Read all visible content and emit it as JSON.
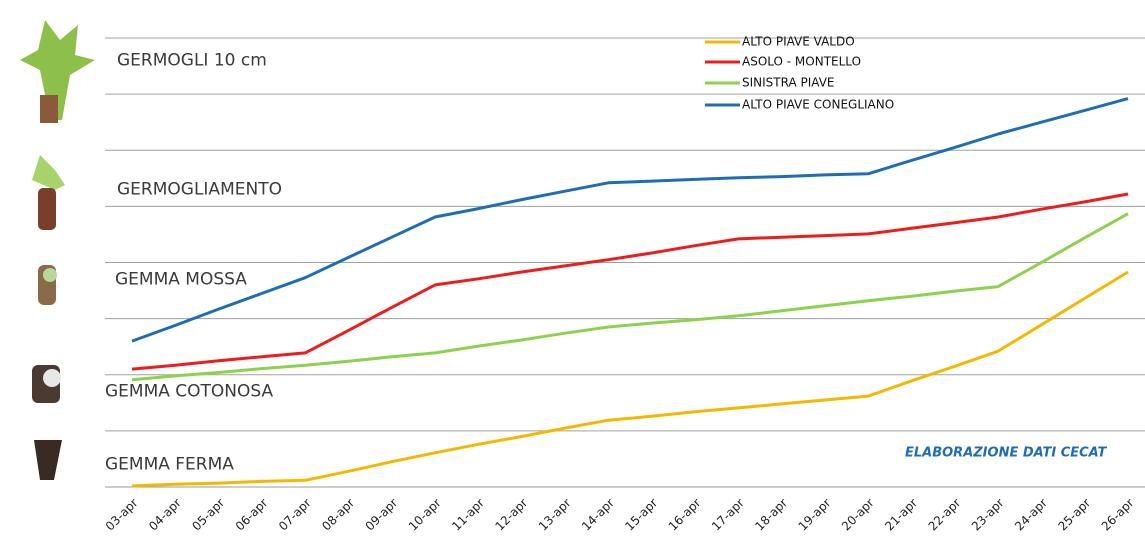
{
  "chart_data": {
    "type": "line",
    "categories": [
      "03-apr",
      "04-apr",
      "05-apr",
      "06-apr",
      "07-apr",
      "08-apr",
      "09-apr",
      "10-apr",
      "11-apr",
      "12-apr",
      "13-apr",
      "14-apr",
      "15-apr",
      "16-apr",
      "17-apr",
      "18-apr",
      "19-apr",
      "20-apr",
      "21-apr",
      "22-apr",
      "23-apr",
      "24-apr",
      "25-apr",
      "26-apr"
    ],
    "series": [
      {
        "name": "ALTO PIAVE VALDO",
        "color": "#f5b800",
        "values": [
          0.02,
          0.05,
          0.07,
          0.1,
          0.12,
          0.28,
          0.45,
          0.61,
          0.76,
          0.9,
          1.05,
          1.19,
          1.26,
          1.34,
          1.41,
          1.48,
          1.55,
          1.62,
          1.89,
          2.15,
          2.42,
          2.89,
          3.36,
          3.83
        ]
      },
      {
        "name": "ASOLO - MONTELLO",
        "color": "#ee1c1c",
        "values": [
          2.1,
          2.17,
          2.25,
          2.32,
          2.39,
          2.79,
          3.2,
          3.6,
          3.71,
          3.83,
          3.94,
          4.05,
          4.17,
          4.3,
          4.42,
          4.45,
          4.48,
          4.51,
          4.61,
          4.71,
          4.81,
          4.95,
          5.08,
          5.22
        ]
      },
      {
        "name": "SINISTRA PIAVE",
        "color": "#8ed14c",
        "values": [
          1.91,
          1.98,
          2.04,
          2.11,
          2.17,
          2.24,
          2.32,
          2.39,
          2.51,
          2.62,
          2.74,
          2.85,
          2.92,
          2.98,
          3.05,
          3.14,
          3.23,
          3.32,
          3.4,
          3.49,
          3.57,
          4.0,
          4.44,
          4.87
        ]
      },
      {
        "name": "ALTO PIAVE CONEGLIANO",
        "color": "#1f6db5",
        "values": [
          2.6,
          2.88,
          3.17,
          3.45,
          3.73,
          4.09,
          4.45,
          4.81,
          4.96,
          5.12,
          5.27,
          5.42,
          5.45,
          5.48,
          5.51,
          5.53,
          5.56,
          5.58,
          5.82,
          6.05,
          6.29,
          6.5,
          6.71,
          6.92
        ]
      }
    ],
    "ylim": [
      0,
      8
    ],
    "yticks": [
      {
        "value": 0.4,
        "label": "GEMMA FERMA"
      },
      {
        "value": 1.7,
        "label": "GEMMA COTONOSA"
      },
      {
        "value": 3.7,
        "label": "GEMMA MOSSA"
      },
      {
        "value": 5.3,
        "label": "GERMOGLIAMENTO"
      },
      {
        "value": 7.6,
        "label": "GERMOGLI 10 cm"
      }
    ],
    "ygrid": [
      0,
      1,
      2,
      3,
      4,
      5,
      6,
      7,
      8
    ],
    "grid": true,
    "annotation": "ELABORAZIONE DATI CECAT"
  }
}
